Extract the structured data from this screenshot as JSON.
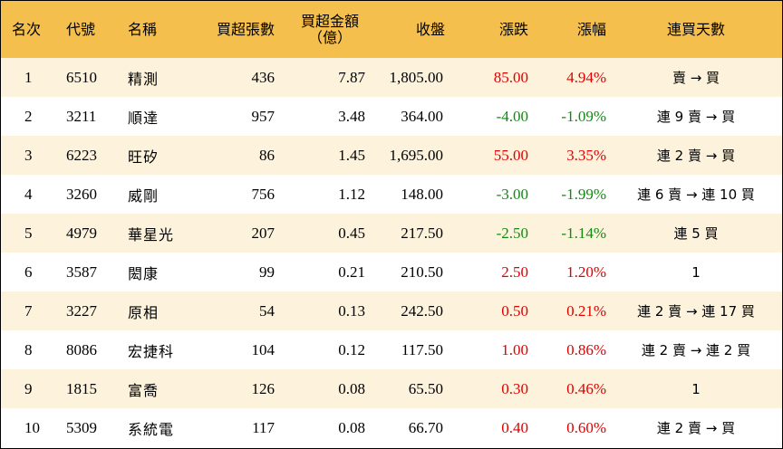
{
  "headers": {
    "rank": "名次",
    "code": "代號",
    "name": "名稱",
    "lots": "買超張數",
    "amount_line1": "買超金額",
    "amount_line2": "（億）",
    "close": "收盤",
    "change": "漲跌",
    "pct": "漲幅",
    "days": "連買天數"
  },
  "colors": {
    "header_bg": "#f5bf4d",
    "stripe_bg": "#fdf3dd",
    "up": "#e00000",
    "down": "#128a12"
  },
  "rows": [
    {
      "rank": "1",
      "code": "6510",
      "name": "精測",
      "lots": "436",
      "amount": "7.87",
      "close": "1,805.00",
      "change": "85.00",
      "pct": "4.94%",
      "dir": "up",
      "days": "賣 → 買"
    },
    {
      "rank": "2",
      "code": "3211",
      "name": "順達",
      "lots": "957",
      "amount": "3.48",
      "close": "364.00",
      "change": "-4.00",
      "pct": "-1.09%",
      "dir": "down",
      "days": "連 9 賣 → 買"
    },
    {
      "rank": "3",
      "code": "6223",
      "name": "旺矽",
      "lots": "86",
      "amount": "1.45",
      "close": "1,695.00",
      "change": "55.00",
      "pct": "3.35%",
      "dir": "up",
      "days": "連 2 賣 → 買"
    },
    {
      "rank": "4",
      "code": "3260",
      "name": "威剛",
      "lots": "756",
      "amount": "1.12",
      "close": "148.00",
      "change": "-3.00",
      "pct": "-1.99%",
      "dir": "down",
      "days": "連 6 賣 → 連 10 買"
    },
    {
      "rank": "5",
      "code": "4979",
      "name": "華星光",
      "lots": "207",
      "amount": "0.45",
      "close": "217.50",
      "change": "-2.50",
      "pct": "-1.14%",
      "dir": "down",
      "days": "連 5 買"
    },
    {
      "rank": "6",
      "code": "3587",
      "name": "閎康",
      "lots": "99",
      "amount": "0.21",
      "close": "210.50",
      "change": "2.50",
      "pct": "1.20%",
      "dir": "up",
      "days": "1"
    },
    {
      "rank": "7",
      "code": "3227",
      "name": "原相",
      "lots": "54",
      "amount": "0.13",
      "close": "242.50",
      "change": "0.50",
      "pct": "0.21%",
      "dir": "up",
      "days": "連 2 賣 → 連 17 買"
    },
    {
      "rank": "8",
      "code": "8086",
      "name": "宏捷科",
      "lots": "104",
      "amount": "0.12",
      "close": "117.50",
      "change": "1.00",
      "pct": "0.86%",
      "dir": "up",
      "days": "連 2 賣 → 連 2 買"
    },
    {
      "rank": "9",
      "code": "1815",
      "name": "富喬",
      "lots": "126",
      "amount": "0.08",
      "close": "65.50",
      "change": "0.30",
      "pct": "0.46%",
      "dir": "up",
      "days": "1"
    },
    {
      "rank": "10",
      "code": "5309",
      "name": "系統電",
      "lots": "117",
      "amount": "0.08",
      "close": "66.70",
      "change": "0.40",
      "pct": "0.60%",
      "dir": "up",
      "days": "連 2 賣 → 買"
    }
  ]
}
